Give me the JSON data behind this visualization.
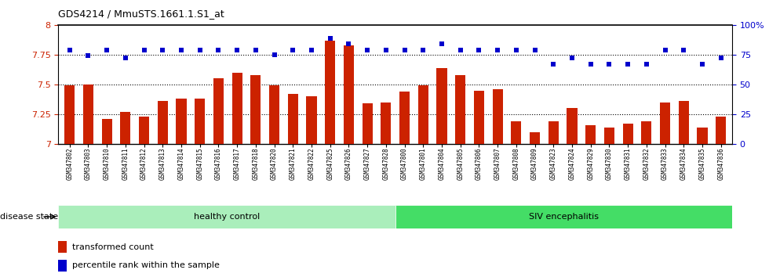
{
  "title": "GDS4214 / MmuSTS.1661.1.S1_at",
  "samples": [
    "GSM347802",
    "GSM347803",
    "GSM347810",
    "GSM347811",
    "GSM347812",
    "GSM347813",
    "GSM347814",
    "GSM347815",
    "GSM347816",
    "GSM347817",
    "GSM347818",
    "GSM347820",
    "GSM347821",
    "GSM347822",
    "GSM347825",
    "GSM347826",
    "GSM347827",
    "GSM347828",
    "GSM347800",
    "GSM347801",
    "GSM347804",
    "GSM347805",
    "GSM347806",
    "GSM347807",
    "GSM347808",
    "GSM347809",
    "GSM347823",
    "GSM347824",
    "GSM347829",
    "GSM347830",
    "GSM347831",
    "GSM347832",
    "GSM347833",
    "GSM347834",
    "GSM347835",
    "GSM347836"
  ],
  "bar_values": [
    7.49,
    7.5,
    7.21,
    7.27,
    7.23,
    7.36,
    7.38,
    7.38,
    7.55,
    7.6,
    7.58,
    7.49,
    7.42,
    7.4,
    7.87,
    7.83,
    7.34,
    7.35,
    7.44,
    7.49,
    7.64,
    7.58,
    7.45,
    7.46,
    7.19,
    7.1,
    7.19,
    7.3,
    7.16,
    7.14,
    7.17,
    7.19,
    7.35,
    7.36,
    7.14,
    7.23
  ],
  "blue_values": [
    79,
    74,
    79,
    72,
    79,
    79,
    79,
    79,
    79,
    79,
    79,
    75,
    79,
    79,
    89,
    84,
    79,
    79,
    79,
    79,
    84,
    79,
    79,
    79,
    79,
    79,
    67,
    72,
    67,
    67,
    67,
    67,
    79,
    79,
    67,
    72
  ],
  "ymin": 7.0,
  "ymax": 8.0,
  "yticks_left": [
    7.0,
    7.25,
    7.5,
    7.75,
    8.0
  ],
  "ytick_labels_left": [
    "7",
    "7.25",
    "7.5",
    "7.75",
    "8"
  ],
  "yticks_right": [
    0,
    25,
    50,
    75,
    100
  ],
  "ytick_labels_right": [
    "0",
    "25",
    "50",
    "75",
    "100%"
  ],
  "bar_color": "#cc2200",
  "dot_color": "#0000cc",
  "healthy_count": 18,
  "healthy_label": "healthy control",
  "siv_label": "SIV encephalitis",
  "healthy_bg": "#aaeebb",
  "siv_bg": "#44dd66",
  "tick_bg": "#cccccc",
  "background_color": "#ffffff",
  "dotted_color": "#000000"
}
